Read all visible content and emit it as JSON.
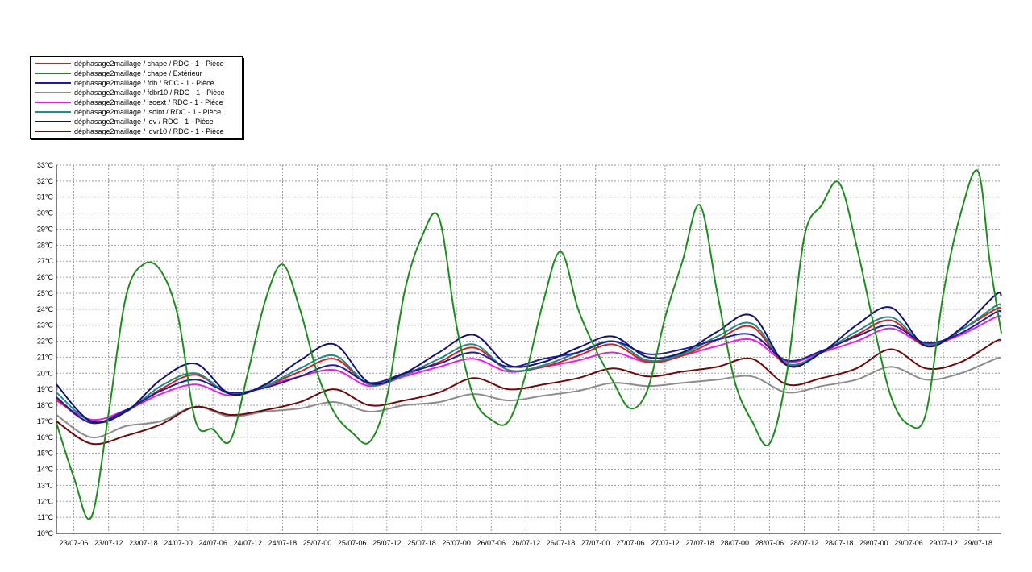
{
  "legend": [
    {
      "label": "déphasage2maillage  /  chape / RDC - 1 - Pièce",
      "color": "#d81e1e"
    },
    {
      "label": "déphasage2maillage  /  chape / Extérieur",
      "color": "#1e8c1e"
    },
    {
      "label": "déphasage2maillage  /  fdb / RDC - 1 - Pièce",
      "color": "#1e1ea0"
    },
    {
      "label": "déphasage2maillage  /  fdbr10 / RDC - 1 - Pièce",
      "color": "#8c8c8c"
    },
    {
      "label": "déphasage2maillage  /  isoext / RDC - 1 - Pièce",
      "color": "#e61ee6"
    },
    {
      "label": "déphasage2maillage  /  isoint / RDC - 1 - Pièce",
      "color": "#1e8c8c"
    },
    {
      "label": "déphasage2maillage  /  ldv / RDC - 1 - Pièce",
      "color": "#14146e"
    },
    {
      "label": "déphasage2maillage  /  ldvr10 / RDC - 1 - Pièce",
      "color": "#6e0a0a"
    }
  ],
  "chart_data": {
    "type": "line",
    "title": "",
    "xlabel": "",
    "ylabel": "",
    "ylim": [
      10,
      33
    ],
    "yticks": [
      "10°C",
      "11°C",
      "12°C",
      "13°C",
      "14°C",
      "15°C",
      "16°C",
      "17°C",
      "18°C",
      "19°C",
      "20°C",
      "21°C",
      "22°C",
      "23°C",
      "24°C",
      "25°C",
      "26°C",
      "27°C",
      "28°C",
      "29°C",
      "30°C",
      "31°C",
      "32°C",
      "33°C"
    ],
    "xticks": [
      "23/07-06",
      "23/07-12",
      "23/07-18",
      "24/07-00",
      "24/07-06",
      "24/07-12",
      "24/07-18",
      "25/07-00",
      "25/07-06",
      "25/07-12",
      "25/07-18",
      "26/07-00",
      "26/07-06",
      "26/07-12",
      "26/07-18",
      "27/07-00",
      "27/07-06",
      "27/07-12",
      "27/07-18",
      "28/07-00",
      "28/07-06",
      "28/07-12",
      "28/07-18",
      "29/07-00",
      "29/07-06",
      "29/07-12",
      "29/07-18"
    ],
    "x_hours_start": 3,
    "x_hours_end": 166,
    "grid": true,
    "legend_position": "top-left",
    "series": [
      {
        "name": "déphasage2maillage  /  chape / RDC - 1 - Pièce",
        "color": "#d81e1e",
        "points": [
          [
            3,
            18.4
          ],
          [
            9,
            16.9
          ],
          [
            15,
            17.6
          ],
          [
            21,
            19.0
          ],
          [
            27,
            19.9
          ],
          [
            33,
            18.7
          ],
          [
            39,
            19.2
          ],
          [
            45,
            20.1
          ],
          [
            51,
            20.9
          ],
          [
            57,
            19.3
          ],
          [
            63,
            19.9
          ],
          [
            69,
            20.7
          ],
          [
            75,
            21.6
          ],
          [
            81,
            20.2
          ],
          [
            87,
            20.4
          ],
          [
            93,
            21.1
          ],
          [
            99,
            21.8
          ],
          [
            105,
            20.7
          ],
          [
            111,
            21.1
          ],
          [
            117,
            22.1
          ],
          [
            123,
            22.9
          ],
          [
            129,
            20.5
          ],
          [
            135,
            21.3
          ],
          [
            141,
            22.4
          ],
          [
            147,
            23.3
          ],
          [
            153,
            21.7
          ],
          [
            159,
            22.7
          ],
          [
            165,
            24.0
          ],
          [
            166,
            24.0
          ]
        ]
      },
      {
        "name": "déphasage2maillage  /  chape / Extérieur",
        "color": "#1e8c1e",
        "points": [
          [
            3,
            16.9
          ],
          [
            6,
            13.5
          ],
          [
            9,
            11.0
          ],
          [
            12,
            17.5
          ],
          [
            15,
            24.8
          ],
          [
            18,
            26.8
          ],
          [
            21,
            26.4
          ],
          [
            24,
            23.5
          ],
          [
            27,
            17.0
          ],
          [
            30,
            16.5
          ],
          [
            33,
            15.8
          ],
          [
            36,
            20.0
          ],
          [
            39,
            24.5
          ],
          [
            42,
            26.8
          ],
          [
            45,
            24.0
          ],
          [
            48,
            20.0
          ],
          [
            51,
            17.5
          ],
          [
            54,
            16.3
          ],
          [
            57,
            15.7
          ],
          [
            60,
            18.5
          ],
          [
            63,
            25.0
          ],
          [
            66,
            28.5
          ],
          [
            69,
            29.7
          ],
          [
            72,
            23.0
          ],
          [
            75,
            18.5
          ],
          [
            78,
            17.1
          ],
          [
            81,
            17.0
          ],
          [
            84,
            20.0
          ],
          [
            87,
            24.5
          ],
          [
            90,
            27.6
          ],
          [
            93,
            24.0
          ],
          [
            96,
            21.5
          ],
          [
            99,
            19.5
          ],
          [
            102,
            17.8
          ],
          [
            105,
            19.0
          ],
          [
            108,
            23.5
          ],
          [
            111,
            27.0
          ],
          [
            114,
            30.5
          ],
          [
            117,
            25.0
          ],
          [
            120,
            19.5
          ],
          [
            123,
            17.0
          ],
          [
            126,
            15.6
          ],
          [
            129,
            20.0
          ],
          [
            132,
            28.5
          ],
          [
            135,
            30.5
          ],
          [
            138,
            31.9
          ],
          [
            141,
            28.0
          ],
          [
            144,
            23.0
          ],
          [
            147,
            18.5
          ],
          [
            150,
            16.8
          ],
          [
            153,
            17.5
          ],
          [
            156,
            25.0
          ],
          [
            159,
            30.0
          ],
          [
            162,
            32.6
          ],
          [
            164,
            27.0
          ],
          [
            166,
            22.5
          ]
        ]
      },
      {
        "name": "déphasage2maillage  /  fdb / RDC - 1 - Pièce",
        "color": "#1e1ea0",
        "points": [
          [
            3,
            18.5
          ],
          [
            9,
            16.9
          ],
          [
            15,
            17.7
          ],
          [
            21,
            18.9
          ],
          [
            27,
            19.6
          ],
          [
            33,
            18.8
          ],
          [
            39,
            19.1
          ],
          [
            45,
            19.8
          ],
          [
            51,
            20.5
          ],
          [
            57,
            19.4
          ],
          [
            63,
            20.0
          ],
          [
            69,
            20.6
          ],
          [
            75,
            21.3
          ],
          [
            81,
            20.4
          ],
          [
            87,
            20.9
          ],
          [
            93,
            21.3
          ],
          [
            99,
            22.0
          ],
          [
            105,
            21.2
          ],
          [
            111,
            21.5
          ],
          [
            117,
            22.1
          ],
          [
            123,
            22.4
          ],
          [
            129,
            20.8
          ],
          [
            135,
            21.4
          ],
          [
            141,
            22.3
          ],
          [
            147,
            23.0
          ],
          [
            153,
            21.9
          ],
          [
            159,
            22.5
          ],
          [
            165,
            23.8
          ],
          [
            166,
            23.8
          ]
        ]
      },
      {
        "name": "déphasage2maillage  /  fdbr10 / RDC - 1 - Pièce",
        "color": "#8c8c8c",
        "points": [
          [
            3,
            17.4
          ],
          [
            9,
            16.0
          ],
          [
            15,
            16.7
          ],
          [
            21,
            17.0
          ],
          [
            27,
            17.9
          ],
          [
            33,
            17.3
          ],
          [
            39,
            17.6
          ],
          [
            45,
            17.8
          ],
          [
            51,
            18.2
          ],
          [
            57,
            17.6
          ],
          [
            63,
            18.0
          ],
          [
            69,
            18.2
          ],
          [
            75,
            18.7
          ],
          [
            81,
            18.3
          ],
          [
            87,
            18.6
          ],
          [
            93,
            18.9
          ],
          [
            99,
            19.4
          ],
          [
            105,
            19.2
          ],
          [
            111,
            19.4
          ],
          [
            117,
            19.6
          ],
          [
            123,
            19.8
          ],
          [
            129,
            18.8
          ],
          [
            135,
            19.2
          ],
          [
            141,
            19.6
          ],
          [
            147,
            20.4
          ],
          [
            153,
            19.6
          ],
          [
            159,
            20.0
          ],
          [
            165,
            20.9
          ],
          [
            166,
            20.9
          ]
        ]
      },
      {
        "name": "déphasage2maillage  /  isoext / RDC - 1 - Pièce",
        "color": "#e61ee6",
        "points": [
          [
            3,
            18.3
          ],
          [
            9,
            17.1
          ],
          [
            15,
            17.7
          ],
          [
            21,
            18.7
          ],
          [
            27,
            19.3
          ],
          [
            33,
            18.6
          ],
          [
            39,
            19.2
          ],
          [
            45,
            19.8
          ],
          [
            51,
            20.2
          ],
          [
            57,
            19.2
          ],
          [
            63,
            19.8
          ],
          [
            69,
            20.4
          ],
          [
            75,
            20.9
          ],
          [
            81,
            20.1
          ],
          [
            87,
            20.4
          ],
          [
            93,
            20.8
          ],
          [
            99,
            21.3
          ],
          [
            105,
            20.7
          ],
          [
            111,
            21.1
          ],
          [
            117,
            21.7
          ],
          [
            123,
            22.1
          ],
          [
            129,
            20.7
          ],
          [
            135,
            21.3
          ],
          [
            141,
            22.0
          ],
          [
            147,
            22.8
          ],
          [
            153,
            21.8
          ],
          [
            159,
            22.4
          ],
          [
            165,
            23.5
          ],
          [
            166,
            23.5
          ]
        ]
      },
      {
        "name": "déphasage2maillage  /  isoint / RDC - 1 - Pièce",
        "color": "#1e8c8c",
        "points": [
          [
            3,
            18.8
          ],
          [
            9,
            17.0
          ],
          [
            15,
            17.6
          ],
          [
            21,
            19.2
          ],
          [
            27,
            20.0
          ],
          [
            33,
            18.7
          ],
          [
            39,
            19.2
          ],
          [
            45,
            20.3
          ],
          [
            51,
            21.1
          ],
          [
            57,
            19.3
          ],
          [
            63,
            19.9
          ],
          [
            69,
            20.9
          ],
          [
            75,
            21.8
          ],
          [
            81,
            20.2
          ],
          [
            87,
            20.5
          ],
          [
            93,
            21.3
          ],
          [
            99,
            22.0
          ],
          [
            105,
            20.8
          ],
          [
            111,
            21.2
          ],
          [
            117,
            22.3
          ],
          [
            123,
            23.1
          ],
          [
            129,
            20.6
          ],
          [
            135,
            21.3
          ],
          [
            141,
            22.6
          ],
          [
            147,
            23.5
          ],
          [
            153,
            21.8
          ],
          [
            159,
            22.7
          ],
          [
            165,
            24.2
          ],
          [
            166,
            24.2
          ]
        ]
      },
      {
        "name": "déphasage2maillage  /  ldv / RDC - 1 - Pièce",
        "color": "#14146e",
        "points": [
          [
            3,
            19.3
          ],
          [
            9,
            17.0
          ],
          [
            15,
            17.6
          ],
          [
            21,
            19.6
          ],
          [
            27,
            20.6
          ],
          [
            33,
            18.7
          ],
          [
            39,
            19.3
          ],
          [
            45,
            20.8
          ],
          [
            51,
            21.8
          ],
          [
            57,
            19.4
          ],
          [
            63,
            20.0
          ],
          [
            69,
            21.3
          ],
          [
            75,
            22.4
          ],
          [
            81,
            20.5
          ],
          [
            87,
            20.7
          ],
          [
            93,
            21.6
          ],
          [
            99,
            22.3
          ],
          [
            105,
            21.0
          ],
          [
            111,
            21.3
          ],
          [
            117,
            22.6
          ],
          [
            123,
            23.6
          ],
          [
            129,
            20.5
          ],
          [
            135,
            21.3
          ],
          [
            141,
            23.0
          ],
          [
            147,
            24.1
          ],
          [
            153,
            21.7
          ],
          [
            159,
            22.8
          ],
          [
            165,
            24.9
          ],
          [
            166,
            24.8
          ]
        ]
      },
      {
        "name": "déphasage2maillage  /  ldvr10 / RDC - 1 - Pièce",
        "color": "#6e0a0a",
        "points": [
          [
            3,
            17.0
          ],
          [
            9,
            15.6
          ],
          [
            15,
            16.1
          ],
          [
            21,
            16.8
          ],
          [
            27,
            17.9
          ],
          [
            33,
            17.4
          ],
          [
            39,
            17.7
          ],
          [
            45,
            18.2
          ],
          [
            51,
            19.0
          ],
          [
            57,
            18.0
          ],
          [
            63,
            18.3
          ],
          [
            69,
            18.8
          ],
          [
            75,
            19.7
          ],
          [
            81,
            19.0
          ],
          [
            87,
            19.3
          ],
          [
            93,
            19.7
          ],
          [
            99,
            20.3
          ],
          [
            105,
            19.8
          ],
          [
            111,
            20.1
          ],
          [
            117,
            20.4
          ],
          [
            123,
            20.9
          ],
          [
            129,
            19.3
          ],
          [
            135,
            19.7
          ],
          [
            141,
            20.3
          ],
          [
            147,
            21.5
          ],
          [
            153,
            20.3
          ],
          [
            159,
            20.7
          ],
          [
            165,
            22.0
          ],
          [
            166,
            22.0
          ]
        ]
      }
    ]
  }
}
